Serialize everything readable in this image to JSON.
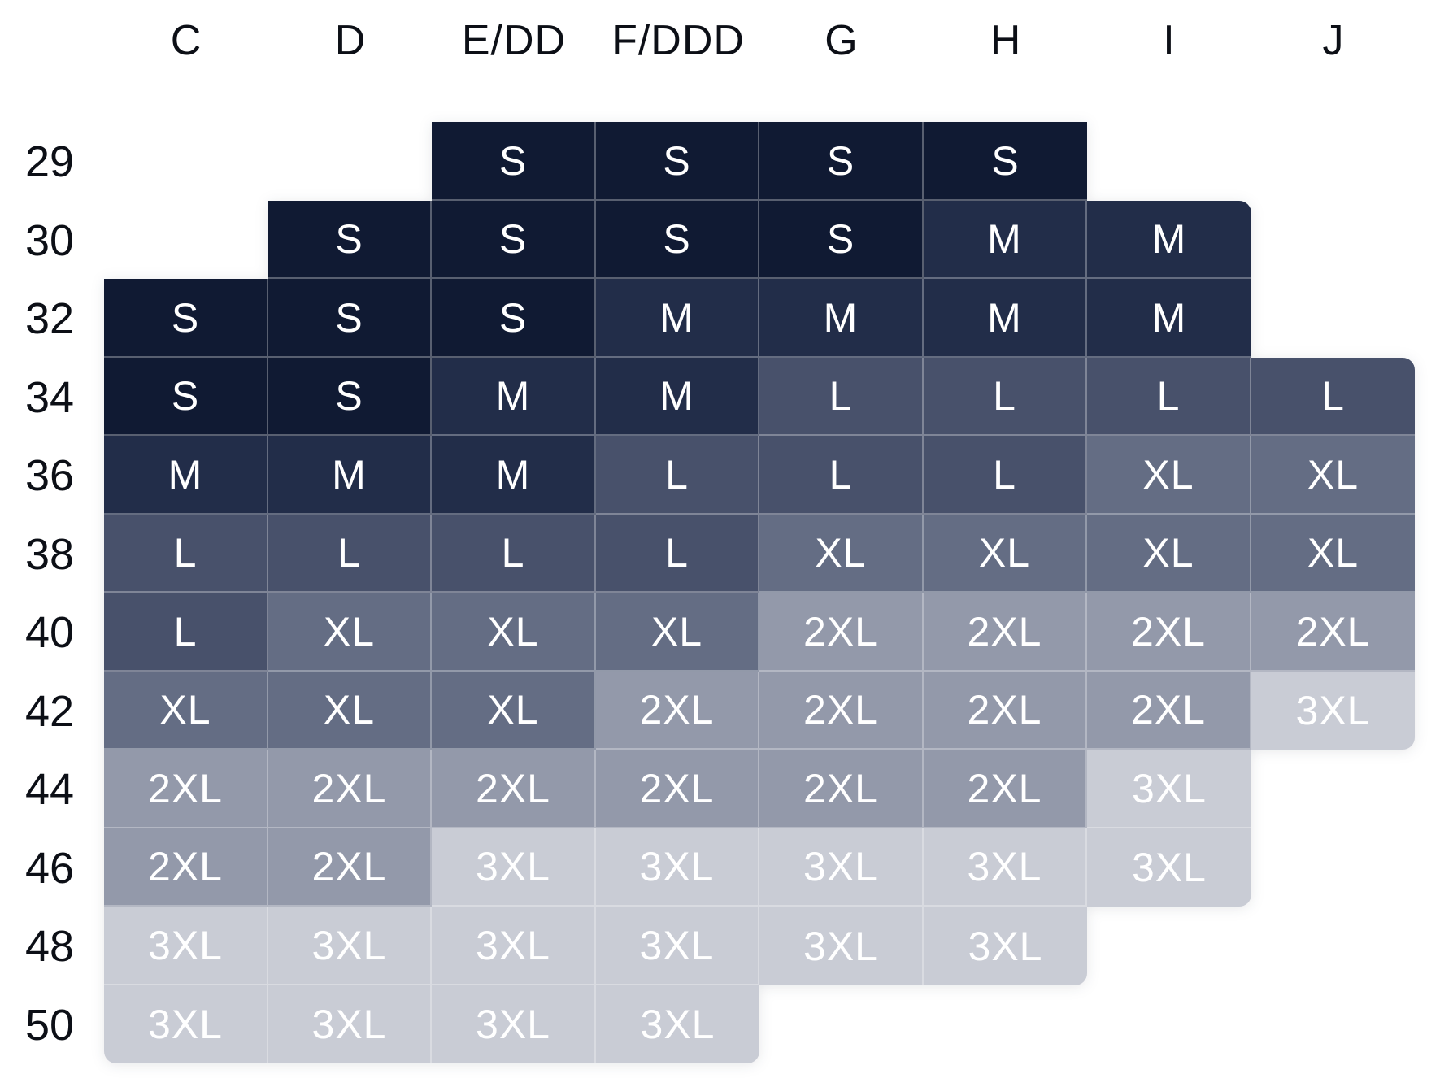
{
  "page": {
    "background_color": "#ffffff"
  },
  "chart_data": {
    "type": "heatmap",
    "x_categories": [
      "C",
      "D",
      "E/DD",
      "F/DDD",
      "G",
      "H",
      "I",
      "J"
    ],
    "y_categories": [
      "29",
      "30",
      "32",
      "34",
      "36",
      "38",
      "40",
      "42",
      "44",
      "46",
      "48",
      "50"
    ],
    "matrix": [
      [
        null,
        null,
        "S",
        "S",
        "S",
        "S",
        null,
        null
      ],
      [
        null,
        "S",
        "S",
        "S",
        "S",
        "M",
        "M",
        null
      ],
      [
        "S",
        "S",
        "S",
        "M",
        "M",
        "M",
        "M",
        null
      ],
      [
        "S",
        "S",
        "M",
        "M",
        "L",
        "L",
        "L",
        "L"
      ],
      [
        "M",
        "M",
        "M",
        "L",
        "L",
        "L",
        "XL",
        "XL"
      ],
      [
        "L",
        "L",
        "L",
        "L",
        "XL",
        "XL",
        "XL",
        "XL"
      ],
      [
        "L",
        "XL",
        "XL",
        "XL",
        "2XL",
        "2XL",
        "2XL",
        "2XL"
      ],
      [
        "XL",
        "XL",
        "XL",
        "2XL",
        "2XL",
        "2XL",
        "2XL",
        "3XL"
      ],
      [
        "2XL",
        "2XL",
        "2XL",
        "2XL",
        "2XL",
        "2XL",
        "3XL",
        null
      ],
      [
        "2XL",
        "2XL",
        "3XL",
        "3XL",
        "3XL",
        "3XL",
        "3XL",
        null
      ],
      [
        "3XL",
        "3XL",
        "3XL",
        "3XL",
        "3XL",
        "3XL",
        null,
        null
      ],
      [
        "3XL",
        "3XL",
        "3XL",
        "3XL",
        null,
        null,
        null,
        null
      ]
    ],
    "legend_sizes": [
      "S",
      "M",
      "L",
      "XL",
      "2XL",
      "3XL"
    ],
    "size_colors": {
      "S": "#101a33",
      "M": "#222d49",
      "L": "#48516b",
      "XL": "#646d84",
      "2XL": "#9399aa",
      "3XL": "#c9ccd5"
    },
    "cell_text_color": "#ffffff",
    "label_color": "#0c0f16",
    "hairline_color": "rgba(255,255,255,0.30)",
    "rounded_corners": [
      {
        "row": "30",
        "col": "I",
        "corner": "tr"
      },
      {
        "row": "34",
        "col": "J",
        "corner": "tr"
      },
      {
        "row": "42",
        "col": "J",
        "corner": "br"
      },
      {
        "row": "46",
        "col": "I",
        "corner": "br"
      },
      {
        "row": "48",
        "col": "H",
        "corner": "br"
      },
      {
        "row": "50",
        "col": "F/DDD",
        "corner": "br"
      },
      {
        "row": "50",
        "col": "C",
        "corner": "bl"
      }
    ],
    "grid": "off",
    "legend_position": "none"
  }
}
